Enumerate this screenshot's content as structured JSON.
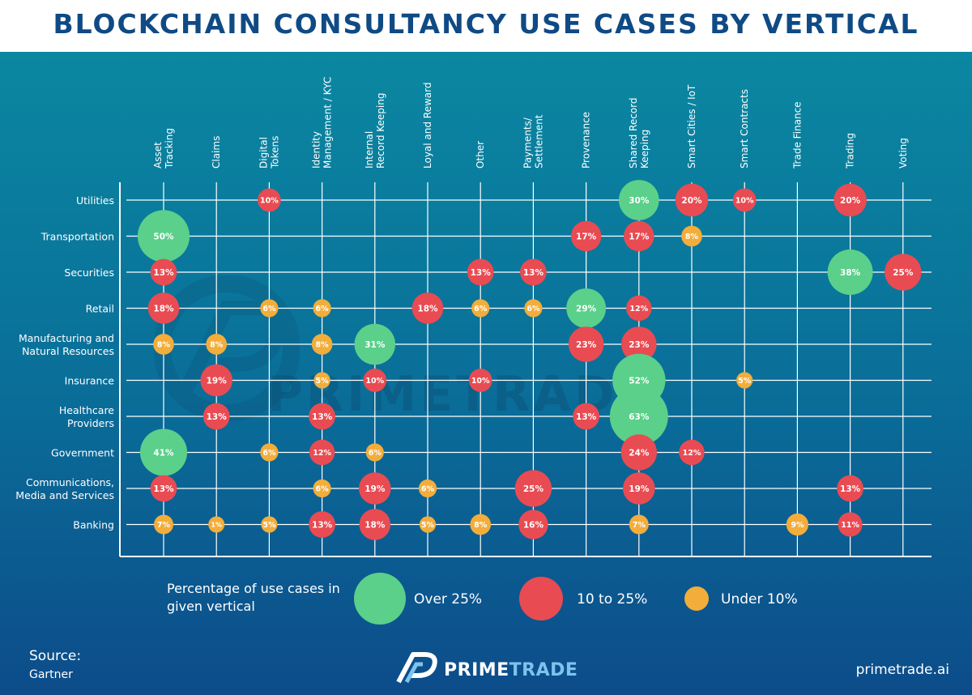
{
  "title": "BLOCKCHAIN CONSULTANCY USE CASES BY VERTICAL",
  "colors": {
    "over": "#5ad08a",
    "mid": "#e94b52",
    "under": "#f2ad3b",
    "grid": "#ffffff",
    "header_text": "#0f4a85"
  },
  "chart_data": {
    "type": "scatter",
    "columns": [
      [
        "Asset",
        "Tracking"
      ],
      [
        "Claims"
      ],
      [
        "Digital",
        "Tokens"
      ],
      [
        "Identity",
        "Management / KYC"
      ],
      [
        "Internal",
        "Record Keeping"
      ],
      [
        "Loyal and Reward"
      ],
      [
        "Other"
      ],
      [
        "Payments/",
        "Settlement"
      ],
      [
        "Provenance"
      ],
      [
        "Shared Record",
        "Keeping"
      ],
      [
        "Smart Cities / IoT"
      ],
      [
        "Smart Contracts"
      ],
      [
        "Trade Finance"
      ],
      [
        "Trading"
      ],
      [
        "Voting"
      ]
    ],
    "rows": [
      [
        "Utilities"
      ],
      [
        "Transportation"
      ],
      [
        "Securities"
      ],
      [
        "Retail"
      ],
      [
        "Manufacturing and",
        "Natural Resources"
      ],
      [
        "Insurance"
      ],
      [
        "Healthcare",
        "Providers"
      ],
      [
        "Government"
      ],
      [
        "Communications,",
        "Media and Services"
      ],
      [
        "Banking"
      ]
    ],
    "points": [
      {
        "row": 0,
        "col": 2,
        "value": 10,
        "label": "10%"
      },
      {
        "row": 0,
        "col": 9,
        "value": 30,
        "label": "30%"
      },
      {
        "row": 0,
        "col": 10,
        "value": 20,
        "label": "20%"
      },
      {
        "row": 0,
        "col": 11,
        "value": 10,
        "label": "10%"
      },
      {
        "row": 0,
        "col": 13,
        "value": 20,
        "label": "20%"
      },
      {
        "row": 1,
        "col": 0,
        "value": 50,
        "label": "50%"
      },
      {
        "row": 1,
        "col": 8,
        "value": 17,
        "label": "17%"
      },
      {
        "row": 1,
        "col": 9,
        "value": 17,
        "label": "17%"
      },
      {
        "row": 1,
        "col": 10,
        "value": 8,
        "label": "8%"
      },
      {
        "row": 2,
        "col": 0,
        "value": 13,
        "label": "13%"
      },
      {
        "row": 2,
        "col": 6,
        "value": 13,
        "label": "13%"
      },
      {
        "row": 2,
        "col": 7,
        "value": 13,
        "label": "13%"
      },
      {
        "row": 2,
        "col": 13,
        "value": 38,
        "label": "38%"
      },
      {
        "row": 2,
        "col": 14,
        "value": 25,
        "label": "25%"
      },
      {
        "row": 3,
        "col": 0,
        "value": 18,
        "label": "18%"
      },
      {
        "row": 3,
        "col": 2,
        "value": 6,
        "label": "6%"
      },
      {
        "row": 3,
        "col": 3,
        "value": 6,
        "label": "6%"
      },
      {
        "row": 3,
        "col": 5,
        "value": 18,
        "label": "18%"
      },
      {
        "row": 3,
        "col": 6,
        "value": 6,
        "label": "6%"
      },
      {
        "row": 3,
        "col": 7,
        "value": 6,
        "label": "6%"
      },
      {
        "row": 3,
        "col": 8,
        "value": 29,
        "label": "29%"
      },
      {
        "row": 3,
        "col": 9,
        "value": 12,
        "label": "12%"
      },
      {
        "row": 4,
        "col": 0,
        "value": 8,
        "label": "8%"
      },
      {
        "row": 4,
        "col": 1,
        "value": 8,
        "label": "8%"
      },
      {
        "row": 4,
        "col": 3,
        "value": 8,
        "label": "8%"
      },
      {
        "row": 4,
        "col": 4,
        "value": 31,
        "label": "31%"
      },
      {
        "row": 4,
        "col": 8,
        "value": 23,
        "label": "23%"
      },
      {
        "row": 4,
        "col": 9,
        "value": 23,
        "label": "23%"
      },
      {
        "row": 5,
        "col": 1,
        "value": 19,
        "label": "19%"
      },
      {
        "row": 5,
        "col": 3,
        "value": 5,
        "label": "5%"
      },
      {
        "row": 5,
        "col": 4,
        "value": 10,
        "label": "10%"
      },
      {
        "row": 5,
        "col": 6,
        "value": 10,
        "label": "10%"
      },
      {
        "row": 5,
        "col": 9,
        "value": 52,
        "label": "52%"
      },
      {
        "row": 5,
        "col": 11,
        "value": 5,
        "label": "5%"
      },
      {
        "row": 6,
        "col": 1,
        "value": 13,
        "label": "13%"
      },
      {
        "row": 6,
        "col": 3,
        "value": 13,
        "label": "13%"
      },
      {
        "row": 6,
        "col": 8,
        "value": 13,
        "label": "13%"
      },
      {
        "row": 6,
        "col": 9,
        "value": 63,
        "label": "63%"
      },
      {
        "row": 7,
        "col": 0,
        "value": 41,
        "label": "41%"
      },
      {
        "row": 7,
        "col": 2,
        "value": 6,
        "label": "6%"
      },
      {
        "row": 7,
        "col": 3,
        "value": 12,
        "label": "12%"
      },
      {
        "row": 7,
        "col": 4,
        "value": 6,
        "label": "6%"
      },
      {
        "row": 7,
        "col": 9,
        "value": 24,
        "label": "24%"
      },
      {
        "row": 7,
        "col": 10,
        "value": 12,
        "label": "12%"
      },
      {
        "row": 8,
        "col": 0,
        "value": 13,
        "label": "13%"
      },
      {
        "row": 8,
        "col": 3,
        "value": 6,
        "label": "6%"
      },
      {
        "row": 8,
        "col": 4,
        "value": 19,
        "label": "19%"
      },
      {
        "row": 8,
        "col": 5,
        "value": 6,
        "label": "6%"
      },
      {
        "row": 8,
        "col": 7,
        "value": 25,
        "label": "25%"
      },
      {
        "row": 8,
        "col": 9,
        "value": 19,
        "label": "19%"
      },
      {
        "row": 8,
        "col": 13,
        "value": 13,
        "label": "13%"
      },
      {
        "row": 9,
        "col": 0,
        "value": 7,
        "label": "7%"
      },
      {
        "row": 9,
        "col": 1,
        "value": 1,
        "label": "1%"
      },
      {
        "row": 9,
        "col": 2,
        "value": 5,
        "label": "5%"
      },
      {
        "row": 9,
        "col": 3,
        "value": 13,
        "label": "13%"
      },
      {
        "row": 9,
        "col": 4,
        "value": 18,
        "label": "18%"
      },
      {
        "row": 9,
        "col": 5,
        "value": 5,
        "label": "5%"
      },
      {
        "row": 9,
        "col": 6,
        "value": 8,
        "label": "8%"
      },
      {
        "row": 9,
        "col": 7,
        "value": 16,
        "label": "16%"
      },
      {
        "row": 9,
        "col": 9,
        "value": 7,
        "label": "7%"
      },
      {
        "row": 9,
        "col": 12,
        "value": 9,
        "label": "9%"
      },
      {
        "row": 9,
        "col": 13,
        "value": 11,
        "label": "11%"
      }
    ],
    "legend": {
      "title": "Percentage of use cases in given vertical",
      "items": [
        "Over 25%",
        "10 to 25%",
        "Under 10%"
      ]
    }
  },
  "watermark": "PRIMETRADE",
  "footer": {
    "source_label": "Source:",
    "source_value": "Gartner",
    "brand_part1": "PRIME",
    "brand_part2": "TRADE",
    "site": "primetrade.ai"
  }
}
